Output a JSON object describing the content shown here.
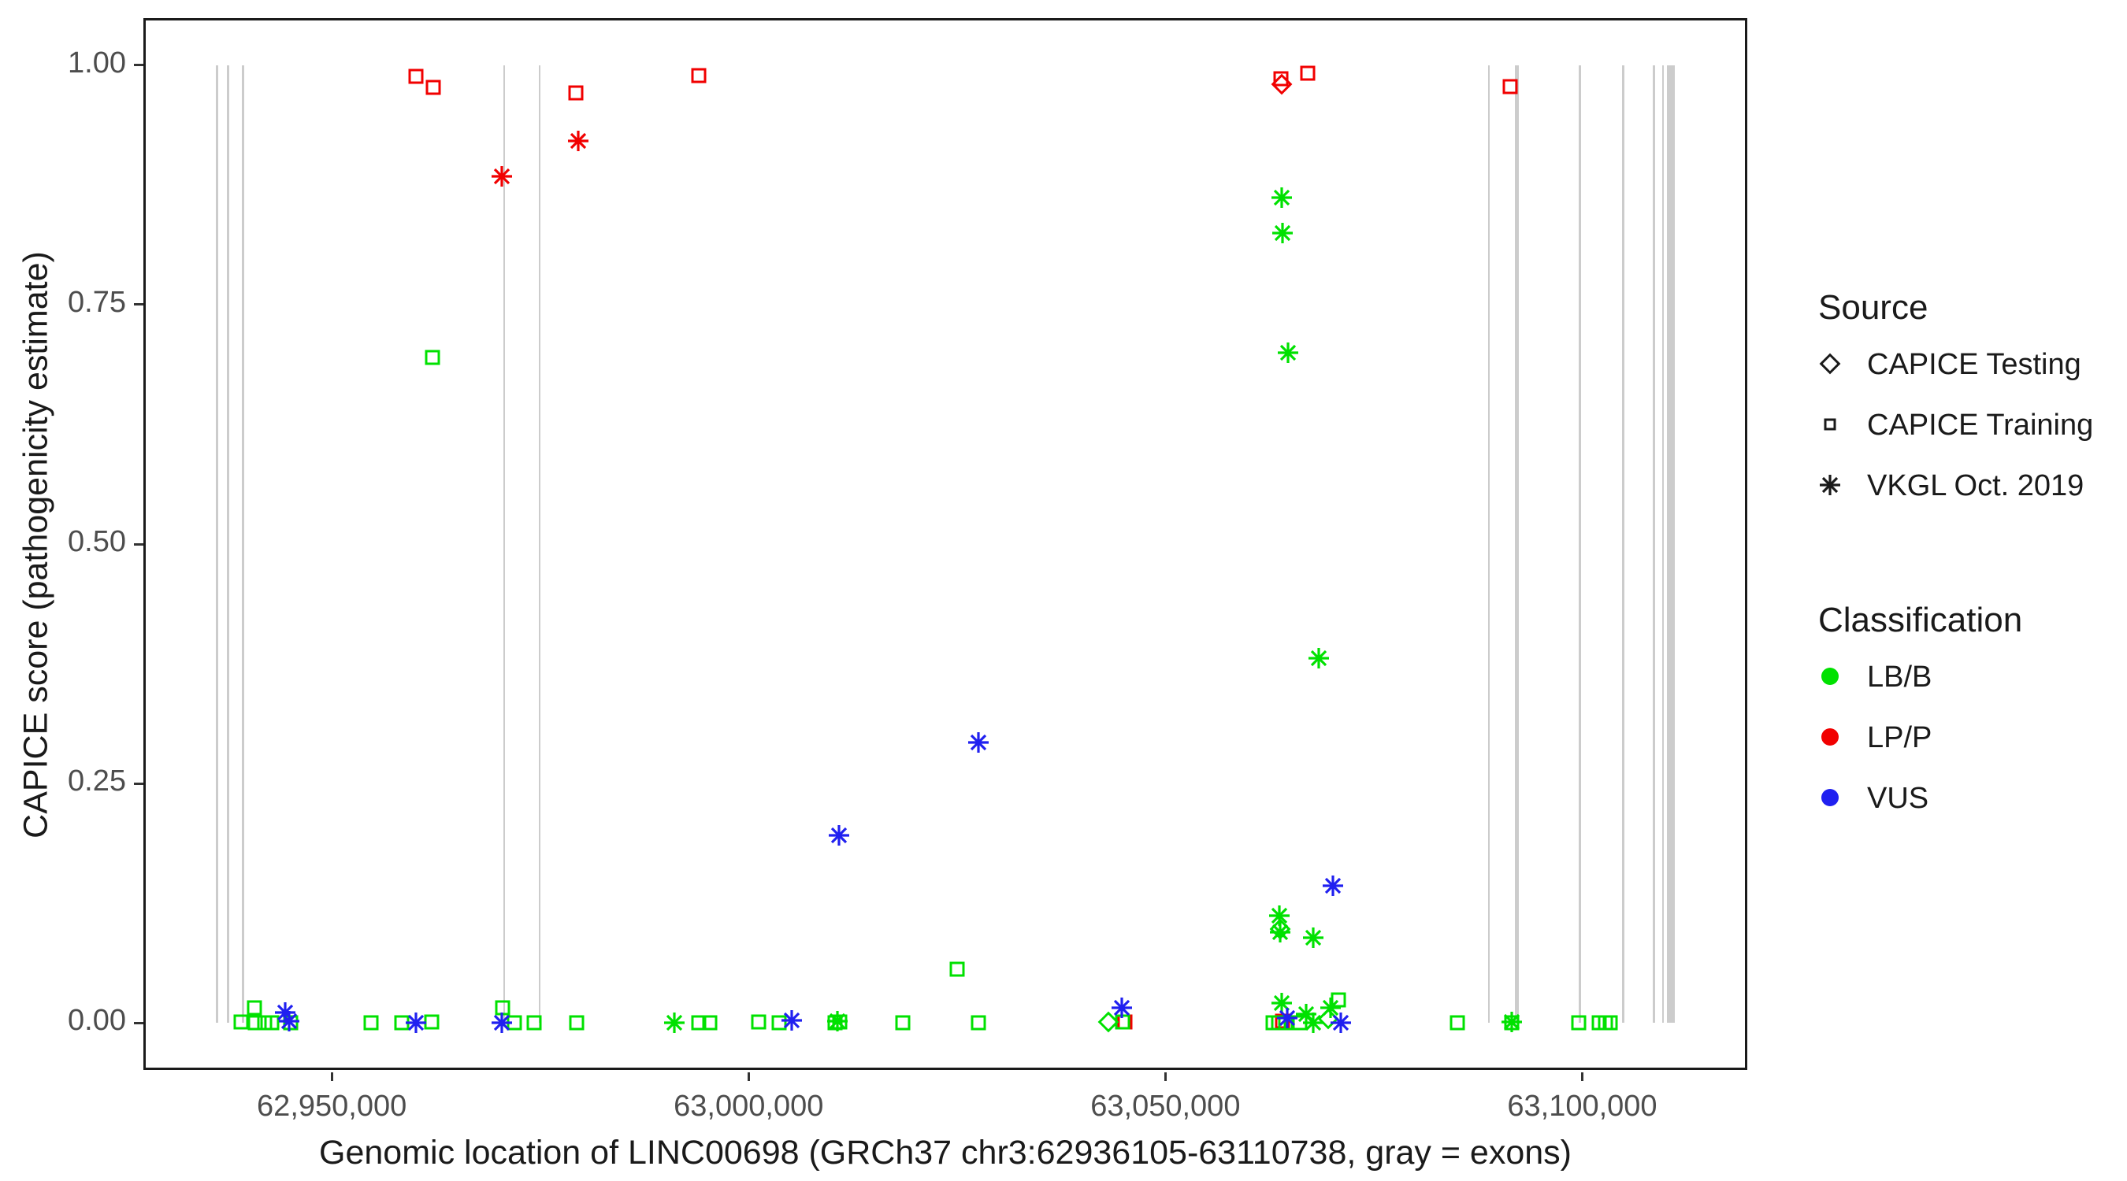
{
  "chart_data": {
    "type": "scatter",
    "xlabel": "Genomic location of LINC00698 (GRCh37 chr3:62936105-63110738, gray = exons)",
    "ylabel": "CAPICE score (pathogenicity estimate)",
    "x_domain": [
      62927400,
      63119800
    ],
    "y_domain": [
      -0.0492,
      1.0492
    ],
    "x_ticks": [
      {
        "bp": 62950000,
        "label": "62,950,000"
      },
      {
        "bp": 63000000,
        "label": "63,000,000"
      },
      {
        "bp": 63050000,
        "label": "63,050,000"
      },
      {
        "bp": 63100000,
        "label": "63,100,000"
      }
    ],
    "y_ticks": [
      {
        "value": 0.0,
        "label": "0.00"
      },
      {
        "value": 0.25,
        "label": "0.25"
      },
      {
        "value": 0.5,
        "label": "0.50"
      },
      {
        "value": 0.75,
        "label": "0.75"
      },
      {
        "value": 1.0,
        "label": "1.00"
      }
    ],
    "exons_bp": [
      [
        62936105,
        62936260
      ],
      [
        62937450,
        62937590
      ],
      [
        62939240,
        62939380
      ],
      [
        62970550,
        62970690
      ],
      [
        62974800,
        62974940
      ],
      [
        63088700,
        63088840
      ],
      [
        63091940,
        63092360
      ],
      [
        63099550,
        63099830
      ],
      [
        63104740,
        63105020
      ],
      [
        63108480,
        63108620
      ],
      [
        63109550,
        63109830
      ],
      [
        63110150,
        63111150
      ]
    ],
    "points": [
      [
        62960100,
        0.988,
        "s",
        "LPP"
      ],
      [
        62962200,
        0.977,
        "s",
        "LPP"
      ],
      [
        62970400,
        0.884,
        "a",
        "LPP"
      ],
      [
        62979300,
        0.971,
        "s",
        "LPP"
      ],
      [
        62979600,
        0.921,
        "a",
        "LPP"
      ],
      [
        62994000,
        0.989,
        "s",
        "LPP"
      ],
      [
        63063850,
        0.986,
        "s",
        "LPP"
      ],
      [
        63063950,
        0.98,
        "d",
        "LPP"
      ],
      [
        63067050,
        0.992,
        "s",
        "LPP"
      ],
      [
        63091400,
        0.978,
        "s",
        "LPP"
      ],
      [
        63045100,
        0.001,
        "s",
        "LPP"
      ],
      [
        63064050,
        0.002,
        "s",
        "LPP"
      ],
      [
        62962100,
        0.695,
        "s",
        "LBB"
      ],
      [
        63063950,
        0.862,
        "a",
        "LBB"
      ],
      [
        63064050,
        0.825,
        "a",
        "LBB"
      ],
      [
        63064700,
        0.7,
        "a",
        "LBB"
      ],
      [
        63068400,
        0.381,
        "a",
        "LBB"
      ],
      [
        63025000,
        0.056,
        "s",
        "LBB"
      ],
      [
        63063650,
        0.112,
        "a",
        "LBB"
      ],
      [
        63063800,
        0.098,
        "d",
        "LBB"
      ],
      [
        63063750,
        0.095,
        "a",
        "LBB"
      ],
      [
        63067700,
        0.089,
        "a",
        "LBB"
      ],
      [
        62939150,
        0.001,
        "s",
        "LBB"
      ],
      [
        62940700,
        0.016,
        "s",
        "LBB"
      ],
      [
        62940850,
        0.0,
        "s",
        "LBB"
      ],
      [
        62941950,
        0.0,
        "s",
        "LBB"
      ],
      [
        62942800,
        0.0,
        "s",
        "LBB"
      ],
      [
        62945050,
        0.0,
        "s",
        "LBB"
      ],
      [
        62954700,
        0.0,
        "s",
        "LBB"
      ],
      [
        62958400,
        0.0,
        "s",
        "LBB"
      ],
      [
        62962000,
        0.001,
        "s",
        "LBB"
      ],
      [
        62970500,
        0.016,
        "s",
        "LBB"
      ],
      [
        62971900,
        0.0,
        "s",
        "LBB"
      ],
      [
        62974250,
        0.0,
        "s",
        "LBB"
      ],
      [
        62979400,
        0.0,
        "s",
        "LBB"
      ],
      [
        62991100,
        0.0,
        "a",
        "LBB"
      ],
      [
        62994000,
        0.0,
        "s",
        "LBB"
      ],
      [
        62995300,
        0.0,
        "s",
        "LBB"
      ],
      [
        63001200,
        0.001,
        "s",
        "LBB"
      ],
      [
        63003700,
        0.0,
        "s",
        "LBB"
      ],
      [
        63010400,
        0.0,
        "s",
        "LBB"
      ],
      [
        63010900,
        0.001,
        "s",
        "LBB"
      ],
      [
        63010650,
        0.002,
        "a",
        "LBB"
      ],
      [
        63018500,
        0.0,
        "s",
        "LBB"
      ],
      [
        63027600,
        0.0,
        "s",
        "LBB"
      ],
      [
        63043200,
        0.001,
        "d",
        "LBB"
      ],
      [
        63044900,
        0.001,
        "s",
        "LBB"
      ],
      [
        63063950,
        0.021,
        "a",
        "LBB"
      ],
      [
        63062900,
        0.0,
        "s",
        "LBB"
      ],
      [
        63063600,
        0.0,
        "s",
        "LBB"
      ],
      [
        63064400,
        0.0,
        "s",
        "LBB"
      ],
      [
        63066100,
        0.0,
        "s",
        "LBB"
      ],
      [
        63066900,
        0.009,
        "a",
        "LBB"
      ],
      [
        63067750,
        0.0,
        "a",
        "LBB"
      ],
      [
        63069550,
        0.004,
        "d",
        "LBB"
      ],
      [
        63069850,
        0.016,
        "a",
        "LBB"
      ],
      [
        63070800,
        0.024,
        "s",
        "LBB"
      ],
      [
        63085000,
        0.0,
        "s",
        "LBB"
      ],
      [
        63091500,
        0.0,
        "s",
        "LBB"
      ],
      [
        63091500,
        0.001,
        "a",
        "LBB"
      ],
      [
        63099600,
        0.0,
        "s",
        "LBB"
      ],
      [
        63102000,
        0.0,
        "s",
        "LBB"
      ],
      [
        63102750,
        0.0,
        "s",
        "LBB"
      ],
      [
        63103400,
        0.0,
        "s",
        "LBB"
      ],
      [
        63027550,
        0.293,
        "a",
        "VUS"
      ],
      [
        63010850,
        0.196,
        "a",
        "VUS"
      ],
      [
        63070050,
        0.143,
        "a",
        "VUS"
      ],
      [
        63044800,
        0.016,
        "a",
        "VUS"
      ],
      [
        62944400,
        0.011,
        "a",
        "VUS"
      ],
      [
        62944900,
        0.002,
        "a",
        "VUS"
      ],
      [
        62960100,
        0.0,
        "a",
        "VUS"
      ],
      [
        62970400,
        0.0,
        "a",
        "VUS"
      ],
      [
        63005200,
        0.003,
        "a",
        "VUS"
      ],
      [
        63064600,
        0.005,
        "a",
        "VUS"
      ],
      [
        63071000,
        0.0,
        "a",
        "VUS"
      ]
    ]
  },
  "legend": {
    "source_title": "Source",
    "source_items": [
      {
        "label": "CAPICE Testing",
        "shape": "d"
      },
      {
        "label": "CAPICE Training",
        "shape": "s"
      },
      {
        "label": "VKGL Oct. 2019",
        "shape": "a"
      }
    ],
    "classification_title": "Classification",
    "classification_items": [
      {
        "label": "LB/B",
        "class": "LBB"
      },
      {
        "label": "LP/P",
        "class": "LPP"
      },
      {
        "label": "VUS",
        "class": "VUS"
      }
    ]
  },
  "colors": {
    "LBB": "#00E100",
    "LPP": "#F10000",
    "VUS": "#2020F0",
    "exon": "#CCCCCC",
    "axis_text": "#4D4D4D",
    "axis_line": "#1A1A1A",
    "legend_symbol": "#1A1A1A"
  }
}
